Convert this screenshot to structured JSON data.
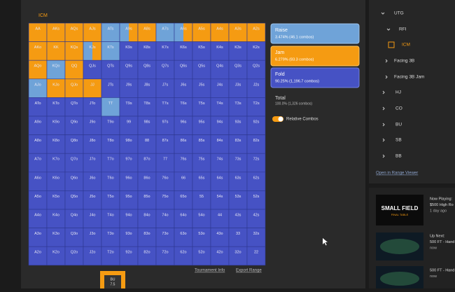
{
  "header": {
    "mode": "ICM"
  },
  "grid": {
    "rows": [
      [
        "AA",
        "AKs",
        "AQs",
        "AJs",
        "ATs",
        "A9s",
        "A8s",
        "A7s",
        "A6s",
        "A5s",
        "A4s",
        "A3s",
        "A2s"
      ],
      [
        "AKo",
        "KK",
        "KQs",
        "KJs",
        "KTs",
        "K9s",
        "K8s",
        "K7s",
        "K6s",
        "K5s",
        "K4s",
        "K3s",
        "K2s"
      ],
      [
        "AQo",
        "KQo",
        "QQ",
        "QJs",
        "QTs",
        "Q9s",
        "Q8s",
        "Q7s",
        "Q6s",
        "Q5s",
        "Q4s",
        "Q3s",
        "Q2s"
      ],
      [
        "AJo",
        "KJo",
        "QJo",
        "JJ",
        "JTs",
        "J9s",
        "J8s",
        "J7s",
        "J6s",
        "J5s",
        "J4s",
        "J3s",
        "J2s"
      ],
      [
        "ATo",
        "KTo",
        "QTo",
        "JTo",
        "TT",
        "T9s",
        "T8s",
        "T7s",
        "T6s",
        "T5s",
        "T4s",
        "T3s",
        "T2s"
      ],
      [
        "A9o",
        "K9o",
        "Q9o",
        "J9o",
        "T9o",
        "99",
        "98s",
        "97s",
        "96s",
        "95s",
        "94s",
        "93s",
        "92s"
      ],
      [
        "A8o",
        "K8o",
        "Q8o",
        "J8o",
        "T8o",
        "98o",
        "88",
        "87s",
        "86s",
        "85s",
        "84s",
        "83s",
        "82s"
      ],
      [
        "A7o",
        "K7o",
        "Q7o",
        "J7o",
        "T7o",
        "97o",
        "87o",
        "77",
        "76s",
        "75s",
        "74s",
        "73s",
        "72s"
      ],
      [
        "A6o",
        "K6o",
        "Q6o",
        "J6o",
        "T6o",
        "96o",
        "86o",
        "76o",
        "66",
        "65s",
        "64s",
        "63s",
        "62s"
      ],
      [
        "A5o",
        "K5o",
        "Q5o",
        "J5o",
        "T5o",
        "95o",
        "85o",
        "75o",
        "65o",
        "55",
        "54s",
        "53s",
        "52s"
      ],
      [
        "A4o",
        "K4o",
        "Q4o",
        "J4o",
        "T4o",
        "94o",
        "84o",
        "74o",
        "64o",
        "54o",
        "44",
        "43s",
        "42s"
      ],
      [
        "A3o",
        "K3o",
        "Q3o",
        "J3o",
        "T3o",
        "93o",
        "83o",
        "73o",
        "63o",
        "53o",
        "43o",
        "33",
        "32s"
      ],
      [
        "A2o",
        "K2o",
        "Q2o",
        "J2o",
        "T2o",
        "92o",
        "82o",
        "72o",
        "62o",
        "52o",
        "42o",
        "32o",
        "22"
      ]
    ]
  },
  "legend": {
    "raise": {
      "label": "Raise",
      "stat": "3.474% (46.1 combos)"
    },
    "jam": {
      "label": "Jam",
      "stat": "6.279% (83.3 combos)"
    },
    "fold": {
      "label": "Fold",
      "stat": "90.25% (1,196.7 combos)"
    },
    "total": {
      "label": "Total",
      "stat": "100.0% (1,326 combos)"
    },
    "toggle": "Relative Combos"
  },
  "links": {
    "info": "Tournament Info",
    "export": "Export Range"
  },
  "seat": {
    "name": "BU",
    "stack": "7.5"
  },
  "tree": {
    "items": [
      "UTG",
      "RFI",
      "ICM",
      "Facing 3B",
      "Facing 3B Jam",
      "HJ",
      "CO",
      "BU",
      "SB",
      "BB"
    ],
    "open": "Open in Range Viewer"
  },
  "videos": {
    "thumb_title": "SMALL FIELD",
    "thumb_sub": "FINAL TABLE",
    "items": [
      {
        "status": "Now Playing:",
        "title": "$500 High Ro",
        "time": "1 day ago"
      },
      {
        "status": "Up Next:",
        "title": "500 FT - Hand",
        "time": "now"
      },
      {
        "title": "500 FT - Hand",
        "time": "now"
      }
    ]
  }
}
